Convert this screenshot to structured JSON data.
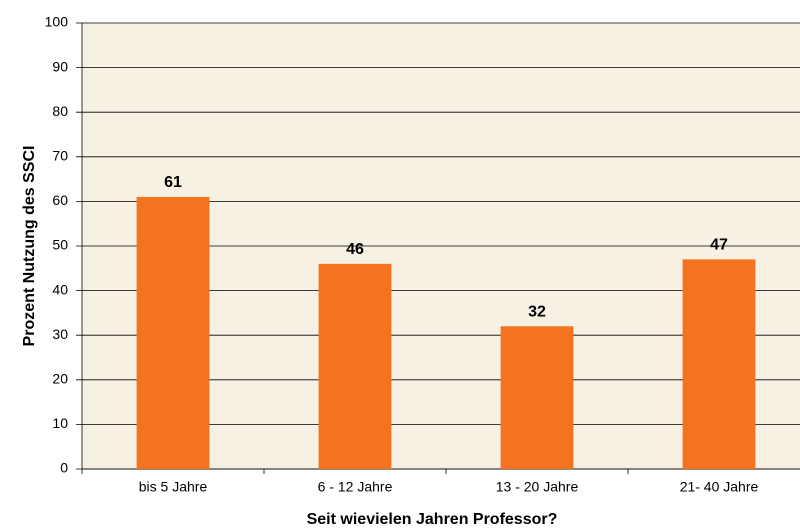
{
  "chart_data": {
    "type": "bar",
    "x_label": "Seit wievielen Jahren Professor?",
    "y_label": "Prozent Nutzung des SSCI",
    "categories": [
      "bis 5 Jahre",
      "6 - 12 Jahre",
      "13 - 20 Jahre",
      "21- 40 Jahre"
    ],
    "values": [
      61,
      46,
      32,
      47
    ],
    "color": "#f47321",
    "ylim": [
      0,
      100
    ],
    "yticks": [
      0,
      10,
      20,
      30,
      40,
      50,
      60,
      70,
      80,
      90,
      100
    ],
    "grid": true
  }
}
